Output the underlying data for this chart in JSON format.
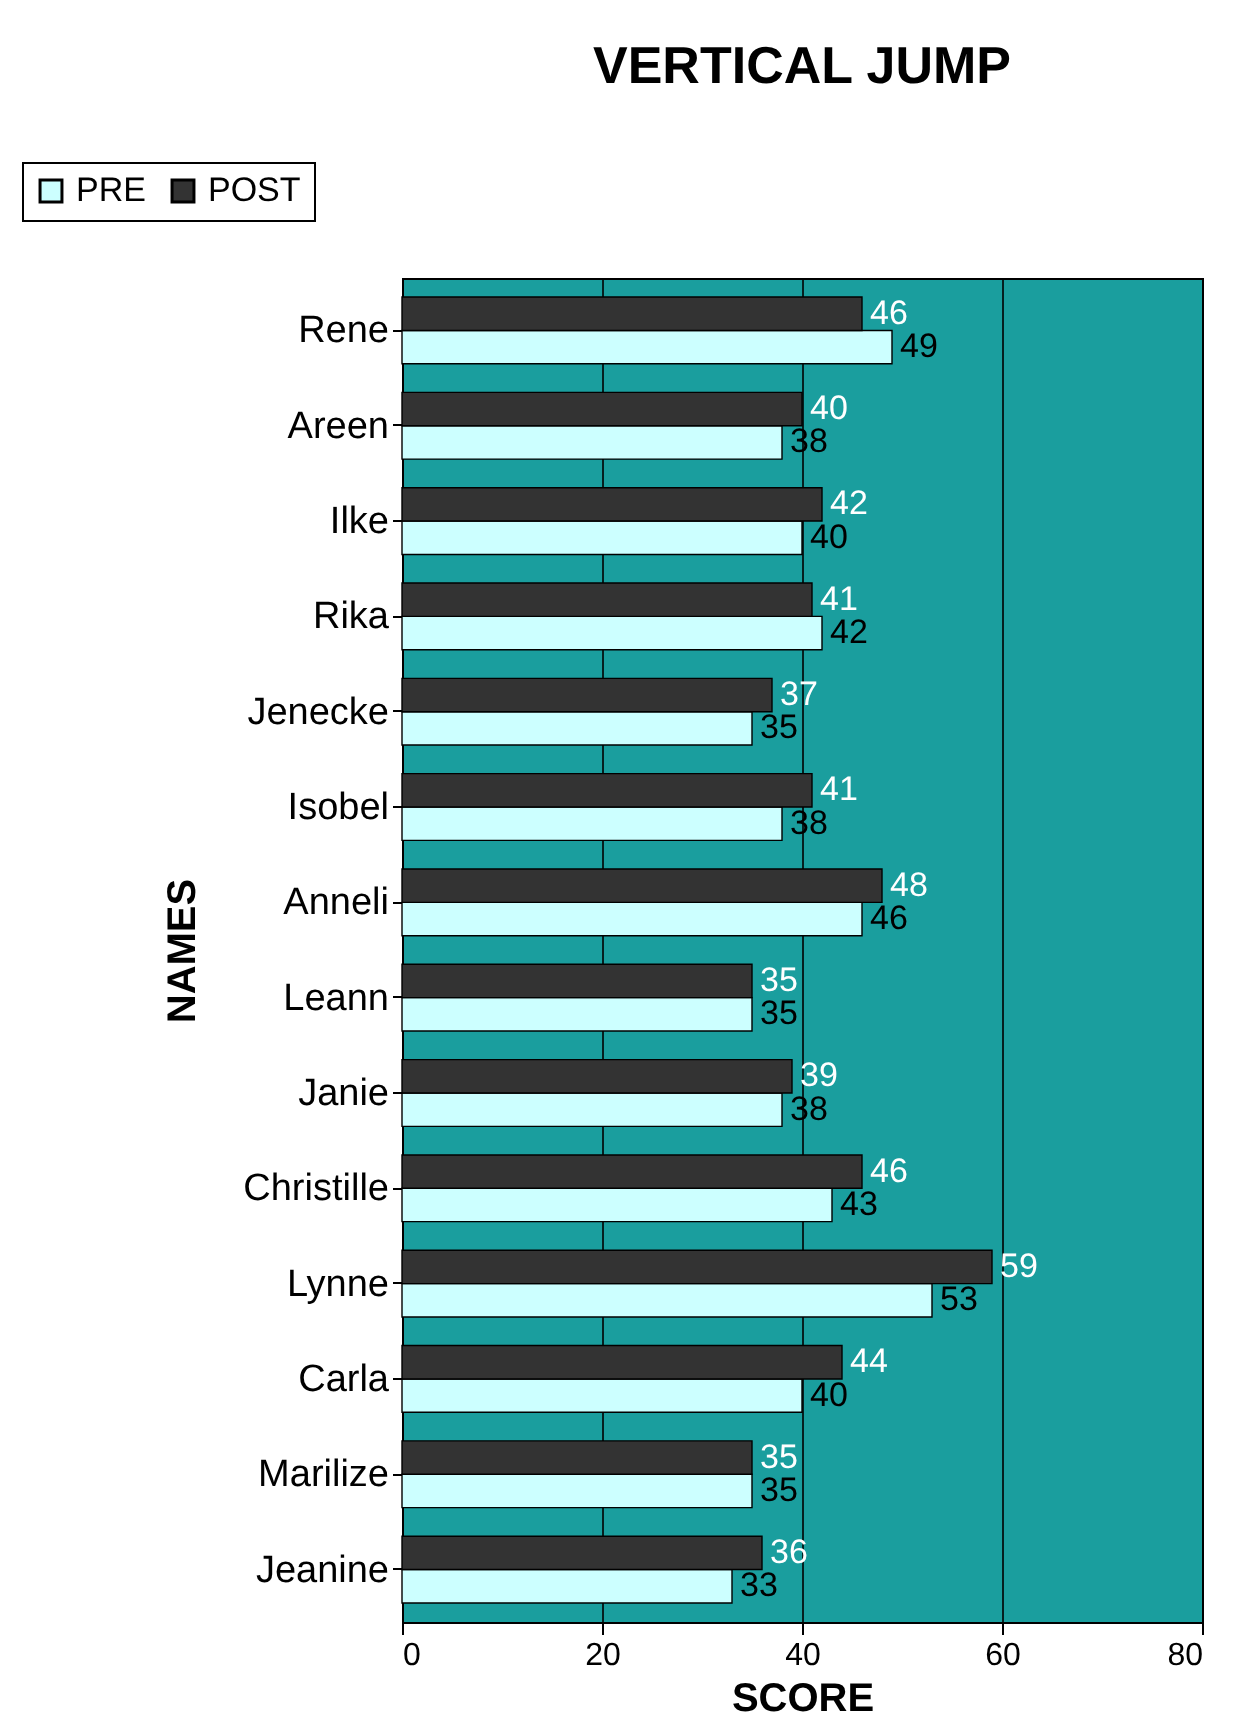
{
  "chart_data": {
    "type": "bar",
    "orientation": "horizontal",
    "title": "VERTICAL JUMP",
    "xlabel": "SCORE",
    "ylabel": "NAMES",
    "categories": [
      "Rene",
      "Areen",
      "Ilke",
      "Rika",
      "Jenecke",
      "Isobel",
      "Anneli",
      "Leann",
      "Janie",
      "Christille",
      "Lynne",
      "Carla",
      "Marilize",
      "Jeanine"
    ],
    "series": [
      {
        "name": "PRE",
        "color": "#ccffff",
        "values": [
          49,
          38,
          40,
          42,
          35,
          38,
          46,
          35,
          38,
          43,
          53,
          40,
          35,
          33
        ]
      },
      {
        "name": "POST",
        "color": "#333333",
        "values": [
          46,
          40,
          42,
          41,
          37,
          41,
          48,
          35,
          39,
          46,
          59,
          44,
          35,
          36
        ]
      }
    ],
    "xlim": [
      0,
      80
    ],
    "xticks": [
      0,
      20,
      40,
      60,
      80
    ],
    "grid": "x",
    "legend": "top left",
    "data_labels": true
  }
}
